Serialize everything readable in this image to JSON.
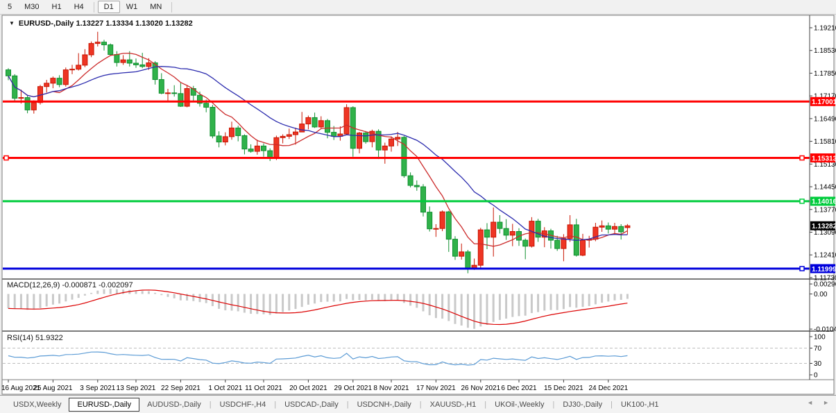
{
  "toolbar": {
    "items": [
      {
        "label": "5",
        "active": false
      },
      {
        "label": "M30",
        "active": false
      },
      {
        "label": "H1",
        "active": false
      },
      {
        "label": "H4",
        "active": false
      },
      {
        "sep": true
      },
      {
        "label": "D1",
        "active": true
      },
      {
        "label": "W1",
        "active": false
      },
      {
        "label": "MN",
        "active": false
      },
      {
        "sep": true
      }
    ]
  },
  "chart_window": {
    "title": {
      "caret": "▼",
      "symbol": "EURUSD-,Daily",
      "open": "1.13227",
      "high": "1.13334",
      "low": "1.13020",
      "close": "1.13282"
    }
  },
  "indicators": {
    "macd": {
      "label": "MACD(12,26,9)",
      "value_main": "-0.000871",
      "value_signal": "-0.002097",
      "axis_labels": [
        "0.002966",
        "0.00",
        "-0.010425"
      ],
      "histogram_color": "#C9C9C9",
      "signal_color": "#DC0000"
    },
    "rsi": {
      "label": "RSI(14)",
      "value": "51.9322",
      "axis_labels": [
        100,
        70,
        30,
        0
      ],
      "levels": [
        70,
        30
      ],
      "line_color": "#5B9BD5",
      "level_color": "#BDBDBD"
    }
  },
  "chart_data": {
    "type": "candlestick",
    "symbol": "EURUSD-,Daily",
    "ohlc_current": {
      "open": 1.13227,
      "high": 1.13334,
      "low": 1.1302,
      "close": 1.13282
    },
    "ylim": [
      1.1173,
      1.1921
    ],
    "y_axis_labels": [
      "1.19210",
      "1.18530",
      "1.17850",
      "1.17170",
      "1.16490",
      "1.15810",
      "1.15130",
      "1.14450",
      "1.13770",
      "1.13090",
      "1.12410",
      "1.11730"
    ],
    "x_labels": [
      {
        "index": 0,
        "label": "16 Aug 2021"
      },
      {
        "index": 7,
        "label": "25 Aug 2021"
      },
      {
        "index": 14,
        "label": "3 Sep 2021"
      },
      {
        "index": 20,
        "label": "13 Sep 2021"
      },
      {
        "index": 27,
        "label": "22 Sep 2021"
      },
      {
        "index": 34,
        "label": "1 Oct 2021"
      },
      {
        "index": 40,
        "label": "11 Oct 2021"
      },
      {
        "index": 47,
        "label": "20 Oct 2021"
      },
      {
        "index": 54,
        "label": "29 Oct 2021"
      },
      {
        "index": 60,
        "label": "8 Nov 2021"
      },
      {
        "index": 67,
        "label": "17 Nov 2021"
      },
      {
        "index": 74,
        "label": "26 Nov 2021"
      },
      {
        "index": 80,
        "label": "6 Dec 2021"
      },
      {
        "index": 87,
        "label": "15 Dec 2021"
      },
      {
        "index": 94,
        "label": "24 Dec 2021"
      }
    ],
    "candles": [
      [
        1.1795,
        1.18,
        1.1764,
        1.1777
      ],
      [
        1.1777,
        1.1782,
        1.1702,
        1.171
      ],
      [
        1.171,
        1.1736,
        1.1694,
        1.1712
      ],
      [
        1.1712,
        1.172,
        1.1665,
        1.1675
      ],
      [
        1.1675,
        1.1704,
        1.1664,
        1.1697
      ],
      [
        1.1697,
        1.175,
        1.1691,
        1.1745
      ],
      [
        1.1745,
        1.1765,
        1.1727,
        1.1755
      ],
      [
        1.1755,
        1.1775,
        1.174,
        1.177
      ],
      [
        1.177,
        1.1779,
        1.1743,
        1.1751
      ],
      [
        1.1751,
        1.1802,
        1.1745,
        1.1795
      ],
      [
        1.1795,
        1.181,
        1.1782,
        1.1797
      ],
      [
        1.1797,
        1.1845,
        1.1793,
        1.1809
      ],
      [
        1.1809,
        1.1857,
        1.1803,
        1.184
      ],
      [
        1.184,
        1.188,
        1.1833,
        1.1874
      ],
      [
        1.1874,
        1.1909,
        1.1865,
        1.1878
      ],
      [
        1.1878,
        1.1885,
        1.1853,
        1.187
      ],
      [
        1.187,
        1.1874,
        1.1837,
        1.1841
      ],
      [
        1.1841,
        1.1851,
        1.1805,
        1.1817
      ],
      [
        1.1817,
        1.1839,
        1.181,
        1.1825
      ],
      [
        1.1825,
        1.1851,
        1.1805,
        1.1815
      ],
      [
        1.1815,
        1.1829,
        1.1801,
        1.181
      ],
      [
        1.181,
        1.1846,
        1.18,
        1.1805
      ],
      [
        1.1805,
        1.183,
        1.1795,
        1.1816
      ],
      [
        1.1816,
        1.1821,
        1.1751,
        1.1766
      ],
      [
        1.1766,
        1.1785,
        1.1722,
        1.1725
      ],
      [
        1.1725,
        1.1738,
        1.17,
        1.1726
      ],
      [
        1.1726,
        1.1749,
        1.1715,
        1.1724
      ],
      [
        1.1724,
        1.1756,
        1.1684,
        1.1686
      ],
      [
        1.1686,
        1.175,
        1.1683,
        1.1739
      ],
      [
        1.1739,
        1.1747,
        1.1701,
        1.1719
      ],
      [
        1.1719,
        1.173,
        1.1685,
        1.1695
      ],
      [
        1.1695,
        1.1706,
        1.1668,
        1.1683
      ],
      [
        1.1683,
        1.169,
        1.159,
        1.1597
      ],
      [
        1.1597,
        1.1611,
        1.1563,
        1.1579
      ],
      [
        1.1579,
        1.1608,
        1.1569,
        1.1595
      ],
      [
        1.1595,
        1.164,
        1.1586,
        1.1621
      ],
      [
        1.1621,
        1.1628,
        1.1581,
        1.1598
      ],
      [
        1.1598,
        1.1602,
        1.1542,
        1.1558
      ],
      [
        1.1558,
        1.1572,
        1.1547,
        1.1551
      ],
      [
        1.1551,
        1.1586,
        1.1541,
        1.1567
      ],
      [
        1.1567,
        1.1575,
        1.1535,
        1.1553
      ],
      [
        1.1553,
        1.156,
        1.1522,
        1.153
      ],
      [
        1.153,
        1.1598,
        1.1525,
        1.1592
      ],
      [
        1.1592,
        1.1602,
        1.1575,
        1.1596
      ],
      [
        1.1596,
        1.1619,
        1.1588,
        1.1601
      ],
      [
        1.1601,
        1.1622,
        1.1571,
        1.1609
      ],
      [
        1.1609,
        1.1669,
        1.1609,
        1.1633
      ],
      [
        1.1633,
        1.1658,
        1.1617,
        1.1652
      ],
      [
        1.1652,
        1.1667,
        1.1621,
        1.1624
      ],
      [
        1.1624,
        1.1656,
        1.162,
        1.1643
      ],
      [
        1.1643,
        1.1648,
        1.159,
        1.1608
      ],
      [
        1.1608,
        1.1627,
        1.1585,
        1.1596
      ],
      [
        1.1596,
        1.1626,
        1.1583,
        1.1603
      ],
      [
        1.1603,
        1.1692,
        1.1601,
        1.1682
      ],
      [
        1.1682,
        1.1686,
        1.1535,
        1.156
      ],
      [
        1.156,
        1.1609,
        1.1545,
        1.1606
      ],
      [
        1.1606,
        1.1612,
        1.1574,
        1.158
      ],
      [
        1.158,
        1.1616,
        1.1563,
        1.1611
      ],
      [
        1.1611,
        1.1617,
        1.1528,
        1.1555
      ],
      [
        1.1555,
        1.1577,
        1.1514,
        1.1567
      ],
      [
        1.1567,
        1.1596,
        1.155,
        1.1588
      ],
      [
        1.1588,
        1.1609,
        1.1567,
        1.1593
      ],
      [
        1.1593,
        1.1597,
        1.1472,
        1.1478
      ],
      [
        1.1478,
        1.1488,
        1.1443,
        1.1449
      ],
      [
        1.1449,
        1.1464,
        1.1433,
        1.1445
      ],
      [
        1.1445,
        1.1453,
        1.1356,
        1.1369
      ],
      [
        1.1369,
        1.1386,
        1.1311,
        1.1319
      ],
      [
        1.1319,
        1.1333,
        1.1295,
        1.132
      ],
      [
        1.132,
        1.1374,
        1.1312,
        1.137
      ],
      [
        1.137,
        1.1373,
        1.125,
        1.1288
      ],
      [
        1.1288,
        1.1297,
        1.1226,
        1.1237
      ],
      [
        1.1237,
        1.1275,
        1.1227,
        1.125
      ],
      [
        1.125,
        1.1256,
        1.1186,
        1.12
      ],
      [
        1.12,
        1.123,
        1.1196,
        1.121
      ],
      [
        1.121,
        1.1322,
        1.1203,
        1.1316
      ],
      [
        1.1316,
        1.1336,
        1.1258,
        1.1294
      ],
      [
        1.1294,
        1.1383,
        1.1236,
        1.1339
      ],
      [
        1.1339,
        1.136,
        1.1305,
        1.132
      ],
      [
        1.132,
        1.1348,
        1.1286,
        1.13
      ],
      [
        1.13,
        1.1334,
        1.1267,
        1.1311
      ],
      [
        1.1311,
        1.1321,
        1.1268,
        1.1285
      ],
      [
        1.1285,
        1.129,
        1.1228,
        1.1267
      ],
      [
        1.1267,
        1.1354,
        1.1263,
        1.1342
      ],
      [
        1.1342,
        1.1349,
        1.128,
        1.1294
      ],
      [
        1.1294,
        1.1324,
        1.1264,
        1.1313
      ],
      [
        1.1313,
        1.1319,
        1.126,
        1.1285
      ],
      [
        1.1285,
        1.1298,
        1.1253,
        1.126
      ],
      [
        1.126,
        1.1303,
        1.1222,
        1.129
      ],
      [
        1.129,
        1.136,
        1.128,
        1.1331
      ],
      [
        1.1331,
        1.1349,
        1.1236,
        1.124
      ],
      [
        1.124,
        1.1304,
        1.1237,
        1.1285
      ],
      [
        1.1285,
        1.1298,
        1.1263,
        1.1288
      ],
      [
        1.1288,
        1.1337,
        1.1282,
        1.1324
      ],
      [
        1.1324,
        1.1344,
        1.131,
        1.1328
      ],
      [
        1.1328,
        1.1338,
        1.1305,
        1.1318
      ],
      [
        1.1318,
        1.1337,
        1.1305,
        1.1326
      ],
      [
        1.1326,
        1.1333,
        1.1287,
        1.131
      ],
      [
        1.13227,
        1.13334,
        1.1302,
        1.13282
      ]
    ],
    "candle_colors": {
      "bull_fill": "#EE3524",
      "bull_stroke": "#C81400",
      "bear_fill": "#30B24A",
      "bear_stroke": "#0F8F2F"
    },
    "moving_averages": [
      {
        "color": "#CC2B2B",
        "period": 8
      },
      {
        "color": "#2B2BAE",
        "period": 20
      }
    ],
    "object_lines": [
      {
        "price": 1.17001,
        "label": "1.17001",
        "color": "#FF0000",
        "handles": []
      },
      {
        "price": 1.15313,
        "label": "1.15313",
        "color": "#FF0000",
        "handles": [
          "left",
          "right"
        ]
      },
      {
        "price": 1.14016,
        "label": "1.14016",
        "color": "#00CC3C",
        "handles": [
          "right"
        ]
      },
      {
        "price": 1.11999,
        "label": "1.11999",
        "color": "#0000DC",
        "handles": [
          "right"
        ]
      }
    ],
    "current_price": {
      "value": 1.13282,
      "label": "1.13282",
      "tag_bg": "#000000"
    }
  },
  "tabs": {
    "items": [
      {
        "label": "USDX,Weekly",
        "active": false
      },
      {
        "label": "EURUSD-,Daily",
        "active": true
      },
      {
        "label": "AUDUSD-,Daily",
        "active": false
      },
      {
        "label": "USDCHF-,H4",
        "active": false
      },
      {
        "label": "USDCAD-,Daily",
        "active": false
      },
      {
        "label": "USDCNH-,Daily",
        "active": false
      },
      {
        "label": "XAUUSD-,H1",
        "active": false
      },
      {
        "label": "UKOil-,Weekly",
        "active": false
      },
      {
        "label": "DJ30-,Daily",
        "active": false
      },
      {
        "label": "UK100-,H1",
        "active": false
      }
    ],
    "arrows": [
      "◄",
      "►"
    ]
  }
}
